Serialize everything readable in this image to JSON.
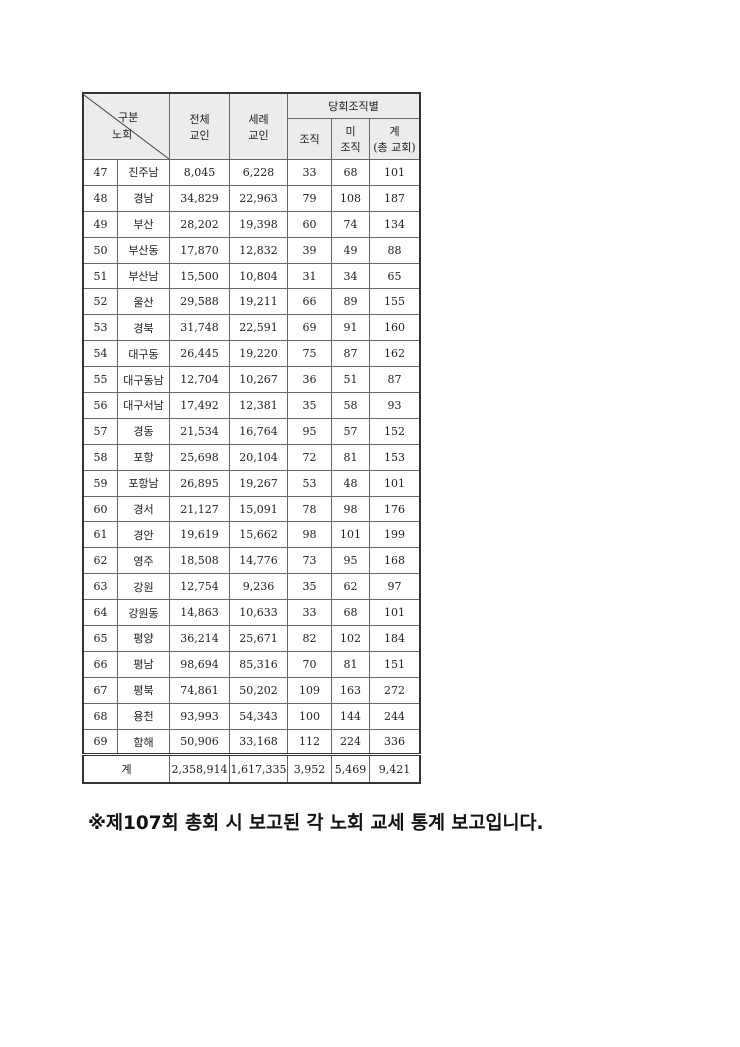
{
  "header": {
    "corner_top": "구분",
    "corner_bottom": "노회",
    "total_members": "전체\n교인",
    "baptized_members": "세례\n교인",
    "group_title": "당회조직별",
    "organized": "조직",
    "unorganized": "미\n조직",
    "sum": "계\n(총 교회)"
  },
  "rows": [
    [
      "47",
      "진주남",
      "8,045",
      "6,228",
      "33",
      "68",
      "101"
    ],
    [
      "48",
      "경남",
      "34,829",
      "22,963",
      "79",
      "108",
      "187"
    ],
    [
      "49",
      "부산",
      "28,202",
      "19,398",
      "60",
      "74",
      "134"
    ],
    [
      "50",
      "부산동",
      "17,870",
      "12,832",
      "39",
      "49",
      "88"
    ],
    [
      "51",
      "부산남",
      "15,500",
      "10,804",
      "31",
      "34",
      "65"
    ],
    [
      "52",
      "울산",
      "29,588",
      "19,211",
      "66",
      "89",
      "155"
    ],
    [
      "53",
      "경북",
      "31,748",
      "22,591",
      "69",
      "91",
      "160"
    ],
    [
      "54",
      "대구동",
      "26,445",
      "19,220",
      "75",
      "87",
      "162"
    ],
    [
      "55",
      "대구동남",
      "12,704",
      "10,267",
      "36",
      "51",
      "87"
    ],
    [
      "56",
      "대구서남",
      "17,492",
      "12,381",
      "35",
      "58",
      "93"
    ],
    [
      "57",
      "경동",
      "21,534",
      "16,764",
      "95",
      "57",
      "152"
    ],
    [
      "58",
      "포항",
      "25,698",
      "20,104",
      "72",
      "81",
      "153"
    ],
    [
      "59",
      "포항남",
      "26,895",
      "19,267",
      "53",
      "48",
      "101"
    ],
    [
      "60",
      "경서",
      "21,127",
      "15,091",
      "78",
      "98",
      "176"
    ],
    [
      "61",
      "경안",
      "19,619",
      "15,662",
      "98",
      "101",
      "199"
    ],
    [
      "62",
      "영주",
      "18,508",
      "14,776",
      "73",
      "95",
      "168"
    ],
    [
      "63",
      "강원",
      "12,754",
      "9,236",
      "35",
      "62",
      "97"
    ],
    [
      "64",
      "강원동",
      "14,863",
      "10,633",
      "33",
      "68",
      "101"
    ],
    [
      "65",
      "평양",
      "36,214",
      "25,671",
      "82",
      "102",
      "184"
    ],
    [
      "66",
      "평남",
      "98,694",
      "85,316",
      "70",
      "81",
      "151"
    ],
    [
      "67",
      "평북",
      "74,861",
      "50,202",
      "109",
      "163",
      "272"
    ],
    [
      "68",
      "용천",
      "93,993",
      "54,343",
      "100",
      "144",
      "244"
    ],
    [
      "69",
      "함해",
      "50,906",
      "33,168",
      "112",
      "224",
      "336"
    ]
  ],
  "total": [
    "계",
    "2,358,914",
    "1,617,335",
    "3,952",
    "5,469",
    "9,421"
  ],
  "note": "※제107회 총회 시 보고된 각 노회 교세 통계 보고입니다."
}
